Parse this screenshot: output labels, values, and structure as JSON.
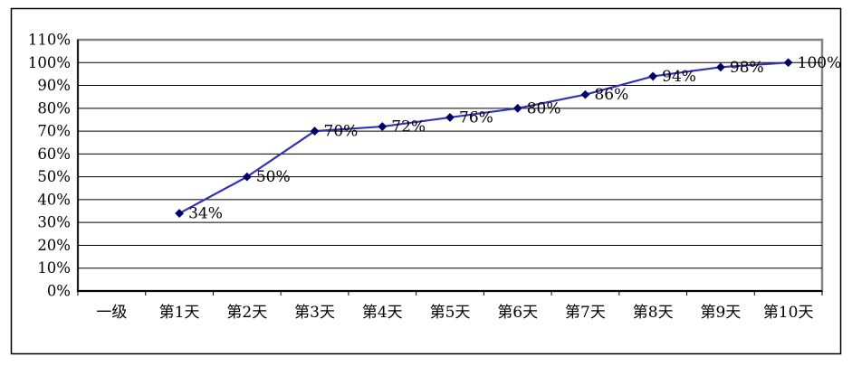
{
  "chart_data": {
    "type": "line",
    "title": "",
    "categories": [
      "一级",
      "第1天",
      "第2天",
      "第3天",
      "第4天",
      "第5天",
      "第6天",
      "第7天",
      "第8天",
      "第9天",
      "第10天"
    ],
    "series": [
      {
        "name": "",
        "values": [
          null,
          34,
          50,
          70,
          72,
          76,
          80,
          86,
          94,
          98,
          100
        ],
        "data_labels": [
          null,
          "34%",
          "50%",
          "70%",
          "72%",
          "76%",
          "80%",
          "86%",
          "94%",
          "98%",
          "100%"
        ]
      }
    ],
    "y_ticks": [
      "0%",
      "10%",
      "20%",
      "30%",
      "40%",
      "50%",
      "60%",
      "70%",
      "80%",
      "90%",
      "100%",
      "110%"
    ],
    "y_tick_values": [
      0,
      10,
      20,
      30,
      40,
      50,
      60,
      70,
      80,
      90,
      100,
      110
    ],
    "ylim": [
      0,
      110
    ],
    "xlabel": "",
    "ylabel": "",
    "grid": "horizontal",
    "legend": "none",
    "colors": {
      "line": "#3333B3",
      "marker": "#000066",
      "gridline": "#000000",
      "plot_border": "#848484",
      "axis": "#000000",
      "frame": "#000000",
      "background": "#ffffff"
    },
    "marker_shape": "diamond"
  }
}
